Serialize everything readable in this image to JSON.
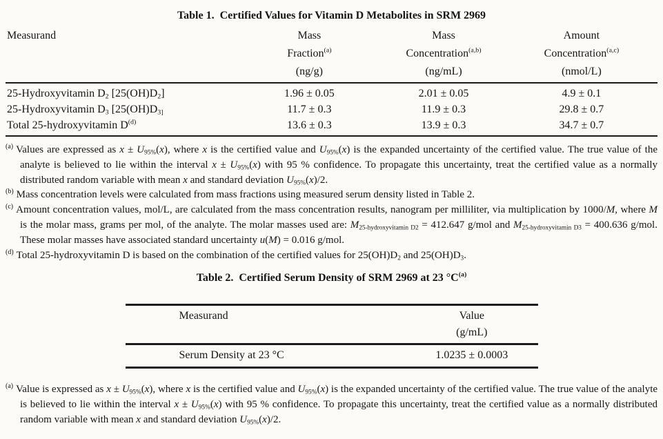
{
  "page": {
    "background_color": "#fcfbf8",
    "text_color": "#161616",
    "rule_color": "#1a1a1a"
  },
  "table1": {
    "title": "Table 1. Certified Values for Vitamin D Metabolites in SRM 2969",
    "headers": {
      "measurand": "Measurand",
      "mass_fraction": "Mass\nFraction^(a)^\n(ng/g)",
      "mass_concentration": "Mass\nConcentration^(a,b)^\n(ng/mL)",
      "amount_concentration": "Amount\nConcentration^(a,c)^\n(nmol/L)"
    },
    "rows": [
      {
        "measurand": "25-Hydroxyvitamin D~2~ [25(OH)D~2~]",
        "mass_fraction": "1.96 ± 0.05",
        "mass_concentration": "2.01 ± 0.05",
        "amount_concentration": "4.9 ± 0.1"
      },
      {
        "measurand": "25-Hydroxyvitamin D~3~ [25(OH)D~3]~",
        "mass_fraction": "11.7 ± 0.3",
        "mass_concentration": "11.9 ± 0.3",
        "amount_concentration": "29.8 ± 0.7"
      },
      {
        "measurand": "Total 25-hydroxyvitamin D^(d)^",
        "mass_fraction": "13.6 ± 0.3",
        "mass_concentration": "13.9 ± 0.3",
        "amount_concentration": "34.7 ± 0.7"
      }
    ]
  },
  "footnotes1": [
    {
      "marker": "(a)",
      "text": "Values are expressed as _x_ ± _U_~95%~(_x_), where _x_ is the certified value and _U_~95%~(_x_) is the expanded uncertainty of the certified value.  The true value of the analyte is believed to lie within the interval _x_ ± _U_~95%~(_x_) with 95 % confidence.  To propagate this uncertainty, treat the certified value as a normally distributed random variable with mean _x_ and standard deviation _U_~95%~(_x_)/2."
    },
    {
      "marker": "(b)",
      "text": "Mass concentration levels were calculated from mass fractions using measured serum density listed in Table 2."
    },
    {
      "marker": "(c)",
      "text": "Amount concentration values, mol/L, are calculated from the mass concentration results, nanogram per milliliter, via multiplication by 1000/_M_, where _M_ is the molar mass, grams per mol, of the analyte.  The molar masses used are: _M_~25-hydroxyvitamin D2~ = 412.647 g/mol and _M_~25-hydroxyvitamin D3~ = 400.636 g/mol.  These molar masses have associated standard uncertainty _u_(_M_) = 0.016 g/mol."
    },
    {
      "marker": "(d)",
      "text": "Total 25-hydroxyvitamin D is based on the combination of the certified values for 25(OH)D~2~ and 25(OH)D~3~."
    }
  ],
  "table2": {
    "title": "Table 2. Certified Serum Density of SRM 2969 at 23 °C^(a)^",
    "headers": {
      "measurand": "Measurand",
      "value": "Value\n(g/mL)"
    },
    "rows": [
      {
        "measurand": "Serum Density at 23 °C",
        "value": "1.0235 ± 0.0003"
      }
    ]
  },
  "footnotes2": [
    {
      "marker": "(a)",
      "text": "Value is expressed as _x_ ± _U_~95%~(_x_), where _x_ is the certified value and _U_~95%~(_x_) is the expanded uncertainty of the certified value.  The true value of the analyte is believed to lie within the interval _x_ ± _U_~95%~(_x_) with 95 % confidence.  To propagate this uncertainty, treat the certified value as a normally distributed random variable with mean _x_ and standard deviation _U_~95%~(_x_)/2."
    }
  ]
}
